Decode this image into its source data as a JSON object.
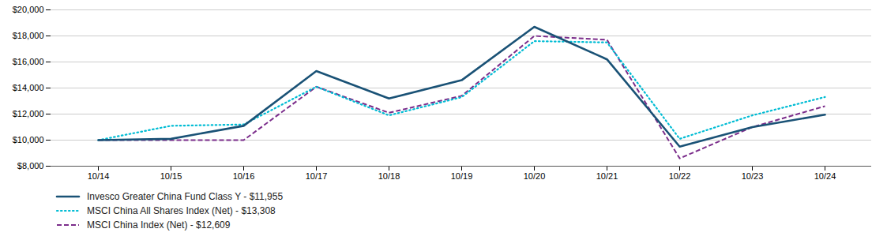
{
  "chart_data": {
    "type": "line",
    "categories": [
      "10/14",
      "10/15",
      "10/16",
      "10/17",
      "10/18",
      "10/19",
      "10/20",
      "10/21",
      "10/22",
      "10/23",
      "10/24"
    ],
    "series": [
      {
        "name": "Invesco Greater China Fund Class Y - $11,955",
        "color": "#1a5276",
        "line_style": "solid",
        "values": [
          10000,
          10100,
          11100,
          15300,
          13200,
          14600,
          18700,
          16200,
          9500,
          11000,
          11955
        ]
      },
      {
        "name": "MSCI China All Shares Index (Net) - $13,308",
        "color": "#00bcd4",
        "line_style": "dotted",
        "values": [
          10000,
          11100,
          11200,
          14100,
          11900,
          13300,
          17600,
          17500,
          10100,
          11900,
          13308
        ]
      },
      {
        "name": "MSCI China Index (Net) - $12,609",
        "color": "#7b2d8b",
        "line_style": "dashed",
        "values": [
          10000,
          10000,
          10000,
          14100,
          12100,
          13400,
          18000,
          17700,
          8600,
          11000,
          12609
        ]
      }
    ],
    "ylim": [
      8000,
      20000
    ],
    "yticks": [
      {
        "value": 8000,
        "label": "$8,000"
      },
      {
        "value": 10000,
        "label": "$10,000"
      },
      {
        "value": 12000,
        "label": "$12,000"
      },
      {
        "value": 14000,
        "label": "$14,000"
      },
      {
        "value": 16000,
        "label": "$16,000"
      },
      {
        "value": 18000,
        "label": "$18,000"
      },
      {
        "value": 20000,
        "label": "$20,000"
      }
    ],
    "grid": true,
    "legend": "bottom"
  }
}
